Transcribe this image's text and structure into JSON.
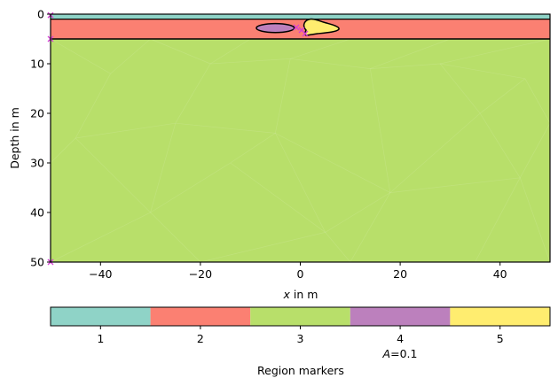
{
  "chart_data": {
    "type": "mesh-region-plot",
    "xlabel_var": "x",
    "xlabel_unit": " in m",
    "ylabel": "Depth in m",
    "xlim": [
      -50,
      50
    ],
    "ylim": [
      50,
      0
    ],
    "x_ticks": [
      -40,
      -20,
      0,
      20,
      40
    ],
    "y_ticks": [
      0,
      10,
      20,
      30,
      40,
      50
    ],
    "grid": false,
    "regions": [
      {
        "marker": "1",
        "color": "#8fd3c7",
        "depth_top": 0,
        "depth_bottom": 1
      },
      {
        "marker": "2",
        "color": "#fb8072",
        "depth_top": 1,
        "depth_bottom": 5
      },
      {
        "marker": "3",
        "color": "#b8df6a",
        "depth_top": 5,
        "depth_bottom": 50
      }
    ],
    "inclusions": [
      {
        "marker": "4",
        "color": "#bc80bd",
        "shape": "ellipse",
        "cx": -5,
        "cy": 2.8,
        "rx": 3.8,
        "ry": 0.9
      },
      {
        "marker": "5",
        "color": "#ffed6f",
        "shape": "blob"
      }
    ],
    "colorbar": {
      "label": "Region markers",
      "note": "A=0.1",
      "entries": [
        {
          "label": "1",
          "color": "#8fd3c7"
        },
        {
          "label": "2",
          "color": "#fb8072"
        },
        {
          "label": "3",
          "color": "#b8df6a"
        },
        {
          "label": "4",
          "color": "#bc80bd"
        },
        {
          "label": "5",
          "color": "#ffed6f"
        }
      ]
    }
  }
}
